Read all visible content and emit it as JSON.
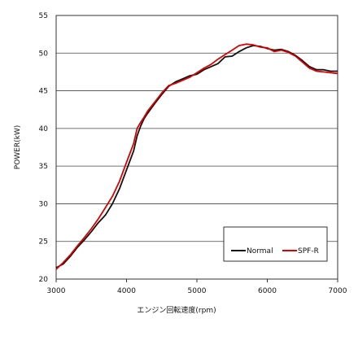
{
  "chart_data": {
    "type": "line",
    "title": "",
    "xlabel": "エンジン回転速度(rpm)",
    "ylabel": "POWER(kW)",
    "xlim": [
      3000,
      7000
    ],
    "ylim": [
      20,
      55
    ],
    "x_ticks": [
      3000,
      4000,
      5000,
      6000,
      7000
    ],
    "y_ticks": [
      20,
      25,
      30,
      35,
      40,
      45,
      50,
      55
    ],
    "grid": "horizontal",
    "legend_position": "bottom-right",
    "series": [
      {
        "name": "Normal",
        "color": "#111111",
        "x": [
          3000,
          3100,
          3200,
          3300,
          3400,
          3500,
          3600,
          3700,
          3800,
          3900,
          4000,
          4100,
          4150,
          4200,
          4250,
          4300,
          4400,
          4500,
          4600,
          4700,
          4800,
          4900,
          5000,
          5100,
          5200,
          5300,
          5400,
          5500,
          5600,
          5700,
          5800,
          5900,
          6000,
          6100,
          6200,
          6300,
          6400,
          6500,
          6600,
          6700,
          6800,
          6900,
          7000
        ],
        "y": [
          21.5,
          22.0,
          23.0,
          24.2,
          25.2,
          26.3,
          27.5,
          28.5,
          30.0,
          32.0,
          34.5,
          37.0,
          39.0,
          40.3,
          41.3,
          42.0,
          43.3,
          44.5,
          45.6,
          46.2,
          46.6,
          47.0,
          47.2,
          47.8,
          48.2,
          48.6,
          49.5,
          49.6,
          50.2,
          50.7,
          51.0,
          50.9,
          50.6,
          50.4,
          50.5,
          50.2,
          49.7,
          49.0,
          48.2,
          47.8,
          47.8,
          47.6,
          47.6
        ]
      },
      {
        "name": "SPF-R",
        "color": "#dd0000",
        "x": [
          3000,
          3100,
          3200,
          3300,
          3400,
          3500,
          3600,
          3700,
          3800,
          3900,
          4000,
          4100,
          4150,
          4200,
          4250,
          4300,
          4400,
          4500,
          4600,
          4700,
          4800,
          4900,
          5000,
          5100,
          5200,
          5300,
          5400,
          5500,
          5600,
          5700,
          5800,
          5900,
          6000,
          6100,
          6200,
          6300,
          6400,
          6500,
          6600,
          6700,
          6800,
          6900,
          7000
        ],
        "y": [
          21.3,
          22.2,
          23.2,
          24.4,
          25.5,
          26.7,
          28.0,
          29.5,
          31.0,
          33.0,
          35.5,
          38.0,
          40.0,
          40.8,
          41.5,
          42.3,
          43.5,
          44.7,
          45.7,
          46.0,
          46.4,
          46.8,
          47.4,
          48.0,
          48.5,
          49.2,
          49.8,
          50.4,
          51.0,
          51.2,
          51.1,
          50.8,
          50.7,
          50.2,
          50.4,
          50.1,
          49.6,
          48.8,
          48.0,
          47.6,
          47.5,
          47.4,
          47.3
        ]
      }
    ]
  }
}
